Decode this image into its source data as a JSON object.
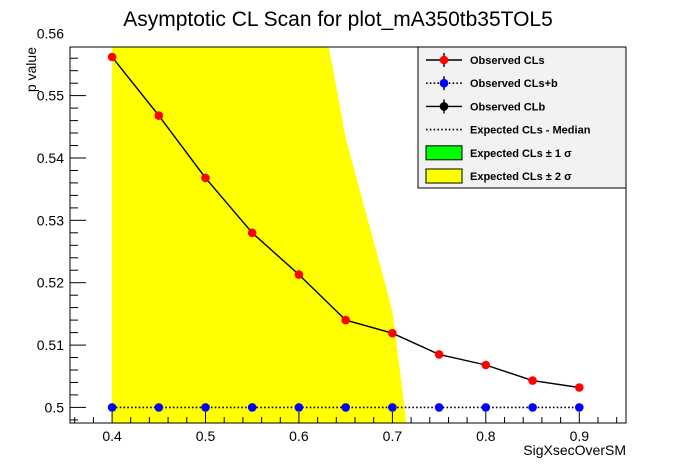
{
  "chart_data": {
    "type": "line",
    "title": "Asymptotic CL Scan for plot_mA350tb35TOL5",
    "xlabel": "SigXsecOverSM",
    "ylabel": "p value",
    "xlim": [
      0.355,
      0.95
    ],
    "ylim": [
      0.4975,
      0.5578
    ],
    "x_ticks": [
      0.4,
      0.5,
      0.6,
      0.7,
      0.8,
      0.9
    ],
    "x_tick_labels": [
      "0.4",
      "0.5",
      "0.6",
      "0.7",
      "0.8",
      "0.9"
    ],
    "y_ticks": [
      0.5,
      0.51,
      0.52,
      0.53,
      0.54,
      0.55,
      0.56
    ],
    "y_tick_labels": [
      "0.5",
      "0.51",
      "0.52",
      "0.53",
      "0.54",
      "0.55",
      "0.56"
    ],
    "x": [
      0.4,
      0.45,
      0.5,
      0.55,
      0.6,
      0.65,
      0.7,
      0.75,
      0.8,
      0.85,
      0.9
    ],
    "series": [
      {
        "name": "Observed CLs",
        "color": "#ff0000",
        "line_color": "#000000",
        "line_style": "solid",
        "values": [
          0.5562,
          0.5468,
          0.5368,
          0.528,
          0.5213,
          0.514,
          0.5119,
          0.5085,
          0.5068,
          0.5043,
          0.5032
        ]
      },
      {
        "name": "Observed CLs+b",
        "color": "#0000ff",
        "line_color": "#000000",
        "line_style": "dotted",
        "values": [
          0.5,
          0.5,
          0.5,
          0.5,
          0.5,
          0.5,
          0.5,
          0.5,
          0.5,
          0.5,
          0.5
        ]
      }
    ],
    "bands": [
      {
        "name": "Expected CLs ± 2 σ",
        "color": "#ffff00",
        "upper": [
          {
            "x": 0.4,
            "y": 0.5578
          },
          {
            "x": 0.632,
            "y": 0.5578
          },
          {
            "x": 0.65,
            "y": 0.5432
          },
          {
            "x": 0.7,
            "y": 0.5155
          },
          {
            "x": 0.715,
            "y": 0.4975
          }
        ],
        "lower": [
          {
            "x": 0.4,
            "y": 0.4975
          }
        ]
      }
    ],
    "legend": {
      "position": "top-right",
      "entries": [
        {
          "label": "Observed CLs",
          "kind": "marker-line",
          "color": "#ff0000",
          "line": "solid"
        },
        {
          "label": "Observed CLs+b",
          "kind": "marker-line",
          "color": "#0000ff",
          "line": "dotted"
        },
        {
          "label": "Observed CLb",
          "kind": "marker-line",
          "color": "#000000",
          "line": "solid"
        },
        {
          "label": "Expected CLs - Median",
          "kind": "line",
          "color": "#000000",
          "line": "dotted"
        },
        {
          "label": "Expected CLs   ± 1 σ",
          "kind": "box",
          "color": "#00ff00"
        },
        {
          "label": "Expected CLs   ± 2 σ",
          "kind": "box",
          "color": "#ffff00"
        }
      ]
    }
  }
}
